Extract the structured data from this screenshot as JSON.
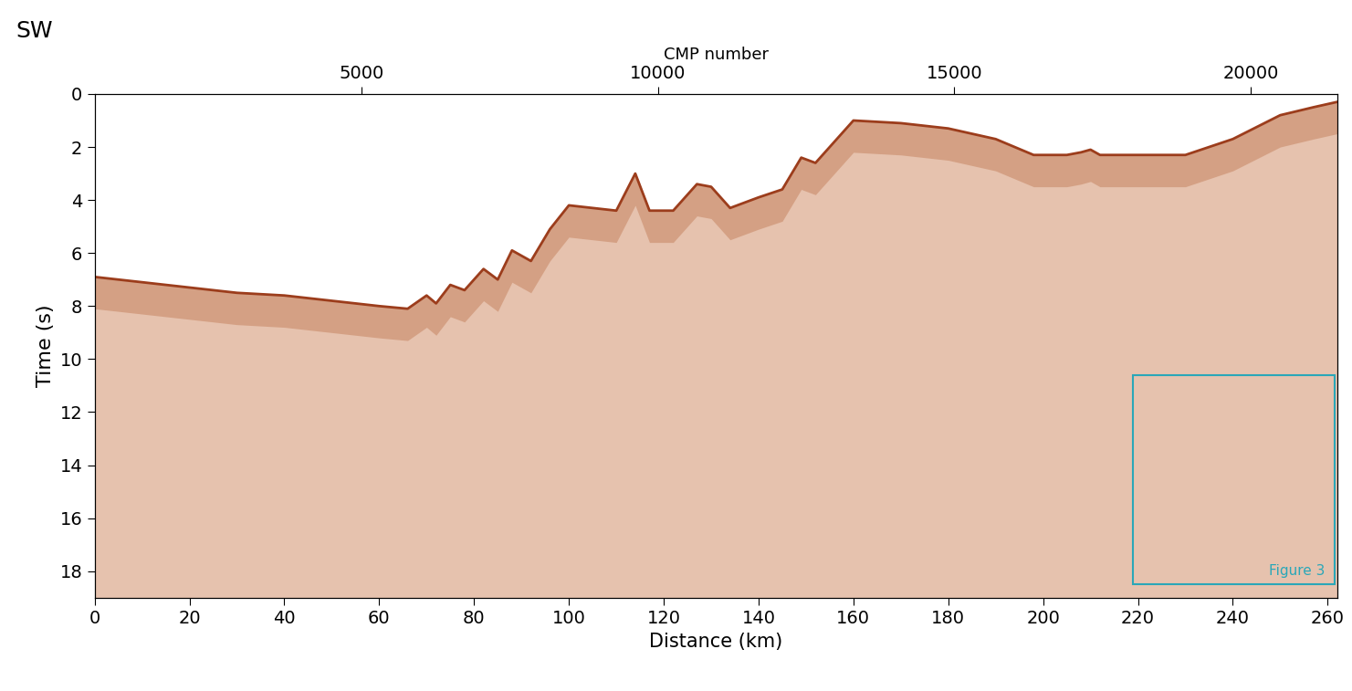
{
  "chart_data": {
    "type": "area",
    "corner_label": "SW",
    "xlabel": "Distance (km)",
    "ylabel": "Time (s)",
    "xlim": [
      0,
      262
    ],
    "xticks": [
      0,
      20,
      40,
      60,
      80,
      100,
      120,
      140,
      160,
      180,
      200,
      220,
      240,
      260
    ],
    "ylim": [
      19,
      0
    ],
    "yticks": [
      0,
      2,
      4,
      6,
      8,
      10,
      12,
      14,
      16,
      18
    ],
    "top_axis": {
      "label": "CMP number",
      "xlim": [
        496,
        21456
      ],
      "xticks": [
        5000,
        10000,
        15000,
        20000
      ]
    },
    "x": [
      0,
      10,
      20,
      30,
      40,
      50,
      60,
      66,
      70,
      72,
      75,
      78,
      82,
      85,
      88,
      92,
      96,
      100,
      105,
      110,
      114,
      117,
      122,
      127,
      130,
      134,
      140,
      145,
      149,
      152,
      156,
      160,
      170,
      180,
      190,
      198,
      205,
      208,
      210,
      212,
      230,
      240,
      250,
      257,
      262
    ],
    "values": [
      6.9,
      7.1,
      7.3,
      7.5,
      7.6,
      7.8,
      8.0,
      8.1,
      7.6,
      7.9,
      7.2,
      7.4,
      6.6,
      7.0,
      5.9,
      6.3,
      5.1,
      4.2,
      4.3,
      4.4,
      3.0,
      4.4,
      4.4,
      3.4,
      3.5,
      4.3,
      3.9,
      3.6,
      2.4,
      2.6,
      1.8,
      1.0,
      1.1,
      1.3,
      1.7,
      2.3,
      2.3,
      2.2,
      2.1,
      2.3,
      2.3,
      1.7,
      0.8,
      0.5,
      0.3
    ],
    "color": "#9c3d1c",
    "annotations": [
      {
        "text": "Figure 3",
        "x": [
          219,
          261.5
        ],
        "y": [
          10.6,
          18.5
        ],
        "color": "#2aa7b8"
      }
    ]
  }
}
